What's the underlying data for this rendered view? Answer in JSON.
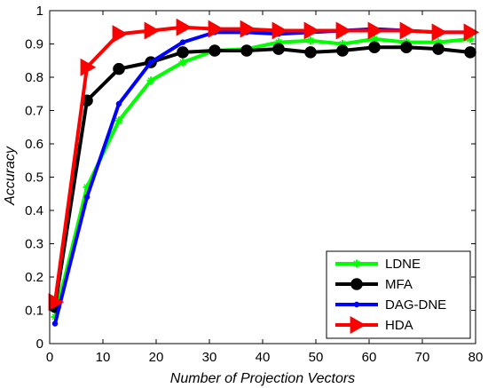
{
  "chart_data": {
    "type": "line",
    "xlabel": "Number of Projection Vectors",
    "ylabel": "Accuracy",
    "xlim": [
      0,
      80
    ],
    "ylim": [
      0,
      1
    ],
    "xticks": [
      0,
      10,
      20,
      30,
      40,
      50,
      60,
      70,
      80
    ],
    "yticks": [
      0,
      0.1,
      0.2,
      0.3,
      0.4,
      0.5,
      0.6,
      0.7,
      0.8,
      0.9,
      1
    ],
    "xtick_labels": [
      "0",
      "10",
      "20",
      "30",
      "40",
      "50",
      "60",
      "70",
      "80"
    ],
    "ytick_labels": [
      "0",
      "0.1",
      "0.2",
      "0.3",
      "0.4",
      "0.5",
      "0.6",
      "0.7",
      "0.8",
      "0.9",
      "1"
    ],
    "grid": false,
    "legend_position": "bottom-right",
    "x": [
      1,
      7,
      13,
      19,
      25,
      31,
      37,
      43,
      49,
      55,
      61,
      67,
      73,
      79
    ],
    "series": [
      {
        "name": "LDNE",
        "color": "#00ff00",
        "marker": "star",
        "values": [
          0.08,
          0.47,
          0.67,
          0.79,
          0.845,
          0.88,
          0.885,
          0.905,
          0.91,
          0.9,
          0.915,
          0.905,
          0.905,
          0.915
        ]
      },
      {
        "name": "MFA",
        "color": "#000000",
        "marker": "circle",
        "values": [
          0.11,
          0.73,
          0.825,
          0.845,
          0.875,
          0.88,
          0.88,
          0.885,
          0.875,
          0.88,
          0.89,
          0.89,
          0.885,
          0.875
        ]
      },
      {
        "name": "DAG-DNE",
        "color": "#0000ff",
        "marker": "dot",
        "values": [
          0.06,
          0.44,
          0.72,
          0.845,
          0.905,
          0.935,
          0.935,
          0.93,
          0.935,
          0.94,
          0.945,
          0.94,
          0.935,
          0.935
        ]
      },
      {
        "name": "HDA",
        "color": "#ff0000",
        "marker": "triangle-right",
        "values": [
          0.125,
          0.83,
          0.93,
          0.94,
          0.95,
          0.945,
          0.945,
          0.94,
          0.94,
          0.94,
          0.94,
          0.94,
          0.935,
          0.935
        ]
      }
    ]
  }
}
